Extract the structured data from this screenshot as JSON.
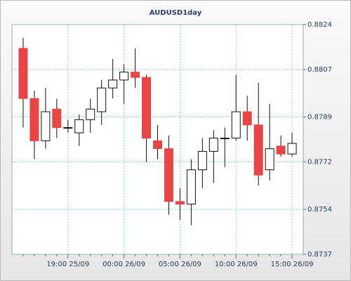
{
  "chart_data": {
    "type": "candlestick",
    "title": "AUDUSD1day",
    "categories": [
      null,
      null,
      null,
      null,
      "19:00 25/09",
      null,
      null,
      null,
      null,
      "00:00 26/09",
      null,
      null,
      null,
      null,
      "05:00 26/09",
      null,
      null,
      null,
      null,
      "10:00 26/09",
      null,
      null,
      null,
      null,
      "15:00 26/09"
    ],
    "open": [
      0.8815,
      0.8796,
      0.878,
      0.8792,
      0.8785,
      0.8783,
      0.8788,
      0.8791,
      0.88,
      0.8803,
      0.8806,
      0.8804,
      0.878,
      0.8777,
      0.8757,
      0.8756,
      0.8769,
      0.8776,
      0.8781,
      0.8781,
      0.8791,
      0.8786,
      0.8769,
      0.8778,
      0.8775
    ],
    "high": [
      0.8819,
      0.8799,
      0.88,
      0.8796,
      0.8788,
      0.879,
      0.8796,
      0.8803,
      0.8811,
      0.8809,
      0.8815,
      0.8805,
      0.8786,
      0.8782,
      0.8762,
      0.8773,
      0.8781,
      0.8784,
      0.8785,
      0.8805,
      0.8797,
      0.8802,
      0.8794,
      0.8782,
      0.8783
    ],
    "low": [
      0.8785,
      0.8773,
      0.8777,
      0.8781,
      0.8783,
      0.8778,
      0.8783,
      0.8786,
      0.8796,
      0.8794,
      0.88,
      0.8772,
      0.8773,
      0.8752,
      0.875,
      0.8748,
      0.8762,
      0.8764,
      0.877,
      0.878,
      0.878,
      0.8763,
      0.8765,
      0.8774,
      0.8774
    ],
    "close": [
      0.8796,
      0.878,
      0.8791,
      0.8785,
      0.8785,
      0.8788,
      0.8792,
      0.88,
      0.8803,
      0.8806,
      0.8804,
      0.8781,
      0.8777,
      0.8757,
      0.8756,
      0.8769,
      0.8776,
      0.8781,
      0.8781,
      0.8791,
      0.8786,
      0.8767,
      0.8777,
      0.8775,
      0.8779
    ],
    "up_color": "#ffffff",
    "down_color": "#e84545",
    "ylim": [
      0.8737,
      0.8824
    ],
    "yticks": [
      0.8824,
      0.8807,
      0.8789,
      0.8772,
      0.8754,
      0.8737
    ],
    "grid": true
  }
}
